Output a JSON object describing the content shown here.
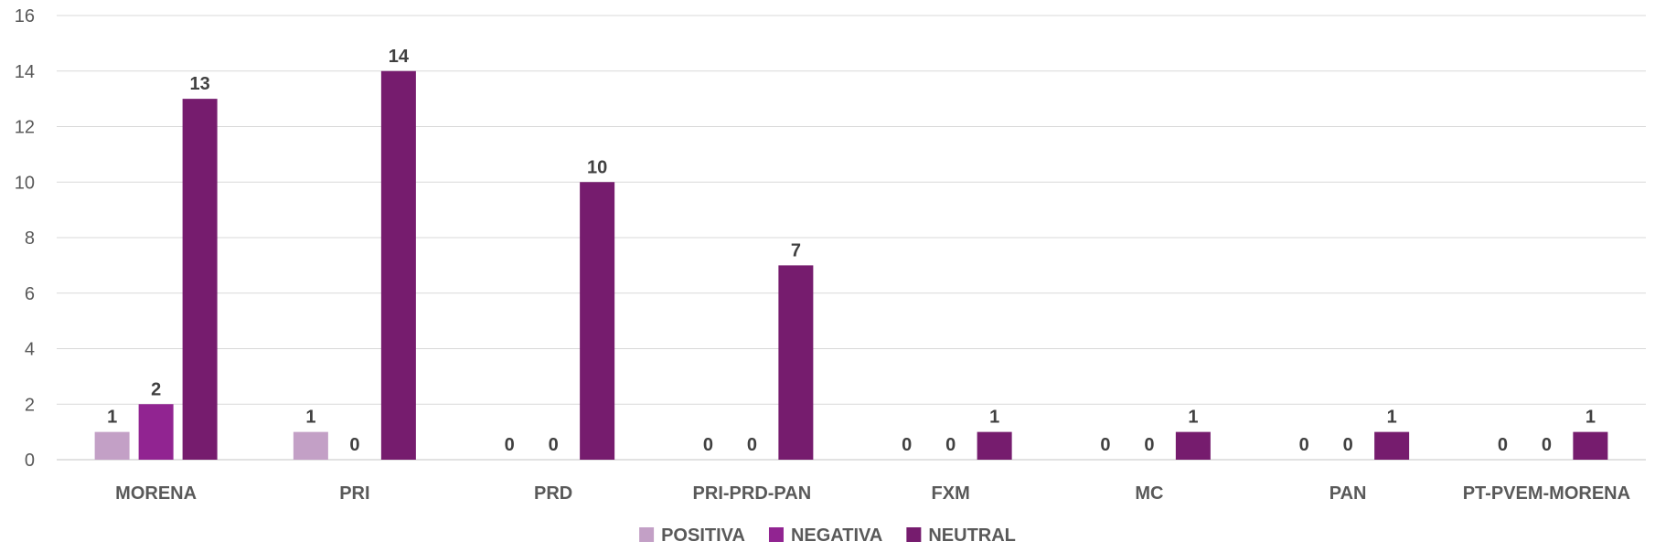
{
  "chart_data": {
    "type": "bar",
    "categories": [
      "MORENA",
      "PRI",
      "PRD",
      "PRI-PRD-PAN",
      "FXM",
      "MC",
      "PAN",
      "PT-PVEM-MORENA"
    ],
    "series": [
      {
        "name": "POSITIVA",
        "color": "#c3a0c6",
        "values": [
          1,
          1,
          0,
          0,
          0,
          0,
          0,
          0
        ]
      },
      {
        "name": "NEGATIVA",
        "color": "#912491",
        "values": [
          2,
          0,
          0,
          0,
          0,
          0,
          0,
          0
        ]
      },
      {
        "name": "NEUTRAL",
        "color": "#761c6e",
        "values": [
          13,
          14,
          10,
          7,
          1,
          1,
          1,
          1
        ]
      }
    ],
    "ylim": [
      0,
      16
    ],
    "yticks": [
      0,
      2,
      4,
      6,
      8,
      10,
      12,
      14,
      16
    ],
    "grid": true,
    "legend_position": "bottom",
    "data_labels": true,
    "title": "",
    "xlabel": "",
    "ylabel": ""
  }
}
